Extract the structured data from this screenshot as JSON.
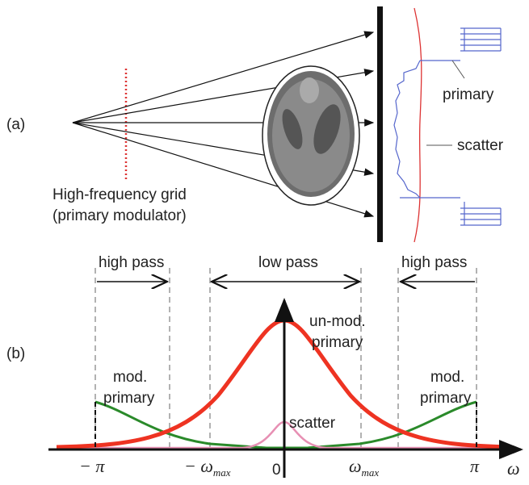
{
  "panel_a": {
    "label": "(a)",
    "grid_label": [
      "High-frequency grid",
      "(primary modulator)"
    ],
    "detector_labels": {
      "primary": "primary",
      "scatter": "scatter"
    }
  },
  "panel_b": {
    "label": "(b)",
    "bands": [
      "high pass",
      "low pass",
      "high pass"
    ],
    "curve_labels": {
      "unmod": [
        "un-mod.",
        "primary"
      ],
      "mod_left": [
        "mod.",
        "primary"
      ],
      "mod_right": [
        "mod.",
        "primary"
      ],
      "scatter": "scatter"
    },
    "axis_labels": {
      "neg_pi": "− π",
      "neg_omega_max": {
        "sign": "− ",
        "symbol": "ω",
        "subscript": "max"
      },
      "zero": "0",
      "omega_max": {
        "symbol": "ω",
        "subscript": "max"
      },
      "pi": "π",
      "omega": "ω"
    }
  }
}
